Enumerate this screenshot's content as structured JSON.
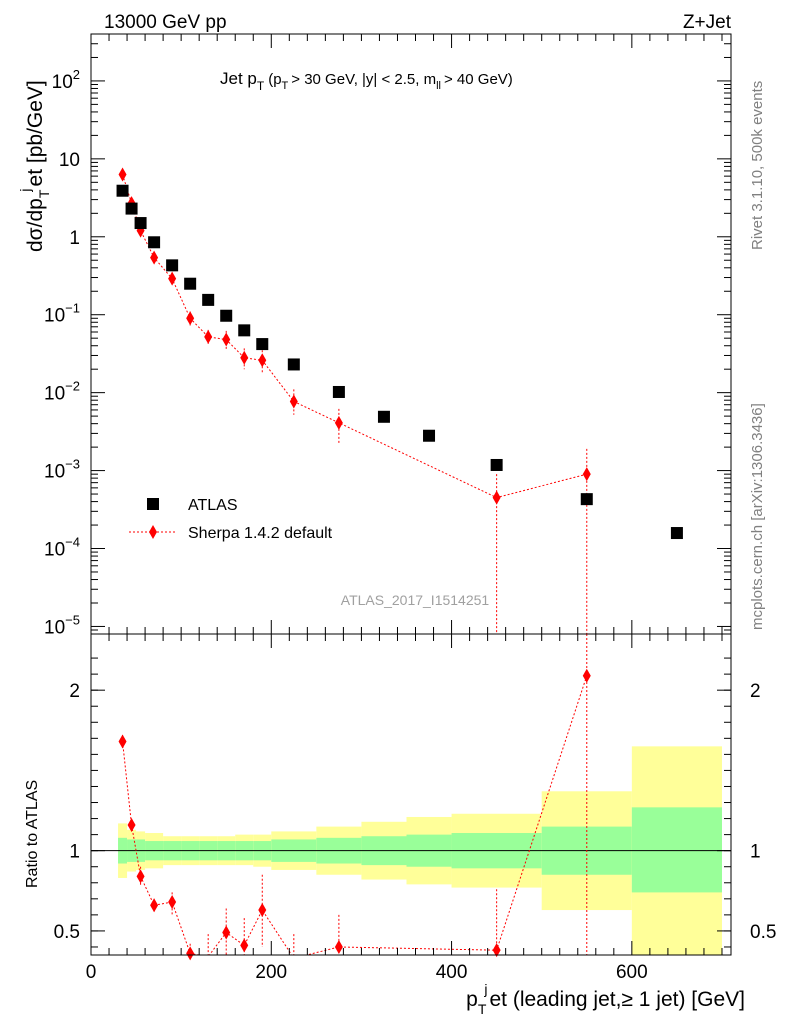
{
  "header": {
    "energy_label": "13000 GeV pp",
    "process_label": "Z+Jet"
  },
  "side_labels": {
    "rivet": "Rivet 3.1.10,  500k events",
    "mcplots": "mcplots.cern.ch [arXiv:1306.3436]"
  },
  "colors": {
    "data": "#000000",
    "mc": "#ff0000",
    "band_inner": "#99ff99",
    "band_outer": "#ffff99"
  },
  "chart_data": [
    {
      "type": "scatter",
      "panel": "main",
      "title": "Jet pT (pT > 30 GeV, |y| < 2.5, mll > 40 GeV)",
      "title_parts": {
        "jet": "Jet p",
        "sub_t": "T",
        "lead_paren": "(p",
        "cut1": "> 30 GeV, |y| < 2.5, m",
        "sub_ll": "ll",
        "cut2": "> 40 GeV)"
      },
      "ylabel": "dσ/dpTjet [pb/GeV]",
      "ylabel_parts": {
        "d_sigma": "dσ/dp",
        "sub_t": "T",
        "sup_j": "j",
        "rest": "et [pb/GeV]"
      },
      "yscale": "log",
      "ylim": [
        8e-06,
        400
      ],
      "xlim": [
        0,
        710
      ],
      "y_ticks": [
        {
          "value": 100,
          "label": "10",
          "exp": "2"
        },
        {
          "value": 10,
          "label": "10",
          "exp": ""
        },
        {
          "value": 1,
          "label": "1",
          "exp": ""
        },
        {
          "value": 0.1,
          "label": "10",
          "exp": "−1"
        },
        {
          "value": 0.01,
          "label": "10",
          "exp": "−2"
        },
        {
          "value": 0.001,
          "label": "10",
          "exp": "−3"
        },
        {
          "value": 0.0001,
          "label": "10",
          "exp": "−4"
        },
        {
          "value": 1e-05,
          "label": "10",
          "exp": "−5"
        }
      ],
      "watermark": "ATLAS_2017_I1514251",
      "legend": {
        "position": "bottom-left",
        "entries": [
          "ATLAS",
          "Sherpa 1.4.2 default"
        ]
      },
      "series": [
        {
          "name": "ATLAS",
          "marker": "square",
          "x": [
            35,
            45,
            55,
            70,
            90,
            110,
            130,
            150,
            170,
            190,
            225,
            275,
            325,
            375,
            450,
            550,
            650
          ],
          "xerr": [
            5,
            5,
            5,
            10,
            10,
            10,
            10,
            10,
            10,
            10,
            25,
            25,
            25,
            25,
            50,
            50,
            50
          ],
          "y": [
            3.9,
            2.3,
            1.5,
            0.85,
            0.43,
            0.25,
            0.155,
            0.097,
            0.063,
            0.042,
            0.023,
            0.0102,
            0.0049,
            0.0028,
            0.00118,
            0.00043,
            0.000158
          ]
        },
        {
          "name": "Sherpa 1.4.2 default",
          "marker": "diamond",
          "line": "dotted",
          "x": [
            35,
            45,
            55,
            70,
            90,
            110,
            130,
            150,
            170,
            190,
            225,
            275,
            450,
            550
          ],
          "y": [
            6.3,
            2.7,
            1.2,
            0.54,
            0.29,
            0.09,
            0.052,
            0.048,
            0.028,
            0.026,
            0.0077,
            0.0041,
            0.00045,
            0.0009
          ],
          "ylow": [
            5.8,
            2.5,
            1.05,
            0.46,
            0.24,
            0.072,
            0.04,
            0.036,
            0.02,
            0.018,
            0.0052,
            0.0022,
            1e-06,
            1e-06
          ],
          "yhigh": [
            6.8,
            2.9,
            1.35,
            0.62,
            0.34,
            0.11,
            0.064,
            0.062,
            0.037,
            0.035,
            0.011,
            0.0062,
            0.0009,
            0.0019
          ]
        }
      ]
    },
    {
      "type": "scatter",
      "panel": "ratio",
      "ylabel": "Ratio to ATLAS",
      "xlabel": "pTjet (leading jet,≥ 1 jet) [GeV]",
      "xlabel_parts": {
        "p": "p",
        "sub_t": "T",
        "sup_j": "j",
        "rest": "et (leading jet,≥ 1 jet) [GeV]"
      },
      "ylim": [
        0.35,
        2.35
      ],
      "xlim": [
        0,
        710
      ],
      "x_ticks": [
        {
          "value": 0,
          "label": "0"
        },
        {
          "value": 200,
          "label": "200"
        },
        {
          "value": 400,
          "label": "400"
        },
        {
          "value": 600,
          "label": "600"
        }
      ],
      "y_ticks": [
        {
          "value": 2,
          "label": "2"
        },
        {
          "value": 1,
          "label": "1"
        },
        {
          "value": 0.5,
          "label": "0.5"
        }
      ],
      "bands": {
        "bin_edges": [
          30,
          40,
          50,
          60,
          80,
          100,
          120,
          140,
          160,
          180,
          200,
          250,
          300,
          350,
          400,
          500,
          600,
          700
        ],
        "inner_low": [
          0.92,
          0.93,
          0.93,
          0.94,
          0.94,
          0.94,
          0.94,
          0.94,
          0.94,
          0.94,
          0.93,
          0.92,
          0.91,
          0.9,
          0.89,
          0.85,
          0.74
        ],
        "inner_high": [
          1.08,
          1.07,
          1.07,
          1.06,
          1.06,
          1.06,
          1.06,
          1.06,
          1.06,
          1.06,
          1.07,
          1.08,
          1.09,
          1.1,
          1.11,
          1.15,
          1.27
        ],
        "outer_low": [
          0.83,
          0.87,
          0.88,
          0.89,
          0.91,
          0.91,
          0.91,
          0.91,
          0.91,
          0.9,
          0.88,
          0.85,
          0.82,
          0.79,
          0.77,
          0.63,
          0.35
        ],
        "outer_high": [
          1.17,
          1.13,
          1.12,
          1.11,
          1.09,
          1.09,
          1.09,
          1.09,
          1.1,
          1.1,
          1.12,
          1.15,
          1.18,
          1.21,
          1.23,
          1.37,
          1.65
        ]
      },
      "series": [
        {
          "name": "Sherpa 1.4.2 default / ATLAS",
          "marker": "diamond",
          "line": "dotted",
          "x": [
            35,
            45,
            55,
            70,
            90,
            110,
            130,
            150,
            170,
            190,
            225,
            275,
            450,
            550
          ],
          "y": [
            1.68,
            1.16,
            0.84,
            0.66,
            0.68,
            0.36,
            0.34,
            0.49,
            0.41,
            0.63,
            0.33,
            0.4,
            0.38,
            2.09
          ],
          "ylow": [
            1.64,
            1.12,
            0.78,
            0.62,
            0.6,
            0.3,
            0.2,
            0.33,
            0.2,
            0.4,
            0.2,
            0.2,
            0.0,
            0.0
          ],
          "yhigh": [
            1.72,
            1.2,
            0.9,
            0.7,
            0.74,
            0.42,
            0.48,
            0.64,
            0.58,
            0.85,
            0.48,
            0.6,
            0.76,
            2.4
          ]
        }
      ]
    }
  ]
}
